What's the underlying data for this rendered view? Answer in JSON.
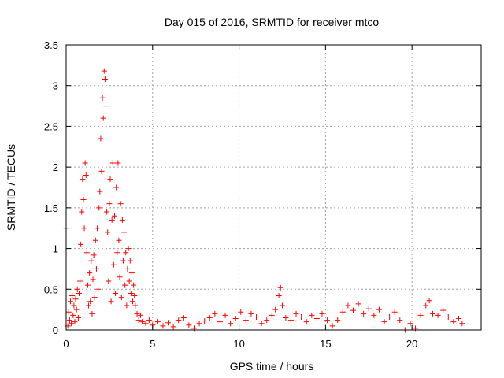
{
  "chart_data": {
    "type": "scatter",
    "title": "Day 015 of 2016, SRMTID for receiver mtco",
    "xlabel": "GPS time / hours",
    "ylabel": "SRMTID / TECUs",
    "xlim": [
      0,
      24
    ],
    "ylim": [
      0,
      3.5
    ],
    "x_ticks": [
      0,
      5,
      10,
      15,
      20
    ],
    "x_tick_labels": [
      "0",
      "5",
      "10",
      "15",
      "20"
    ],
    "y_ticks": [
      0,
      0.5,
      1,
      1.5,
      2,
      2.5,
      3,
      3.5
    ],
    "y_tick_labels": [
      "0",
      "0.5",
      "1",
      "1.5",
      "2",
      "2.5",
      "3",
      "3.5"
    ],
    "grid": true,
    "marker": "+",
    "marker_color": "#ff0000",
    "series": [
      {
        "name": "SRMTID",
        "points": [
          [
            0.0,
            1.25
          ],
          [
            0.1,
            0.05
          ],
          [
            0.15,
            0.22
          ],
          [
            0.2,
            0.12
          ],
          [
            0.25,
            0.35
          ],
          [
            0.3,
            0.08
          ],
          [
            0.35,
            0.42
          ],
          [
            0.4,
            0.18
          ],
          [
            0.45,
            0.3
          ],
          [
            0.5,
            0.1
          ],
          [
            0.55,
            0.38
          ],
          [
            0.6,
            0.25
          ],
          [
            0.65,
            0.5
          ],
          [
            0.7,
            0.15
          ],
          [
            0.75,
            0.45
          ],
          [
            0.8,
            0.6
          ],
          [
            0.85,
            1.05
          ],
          [
            0.9,
            1.45
          ],
          [
            0.95,
            1.85
          ],
          [
            1.0,
            1.6
          ],
          [
            1.05,
            1.25
          ],
          [
            1.1,
            2.05
          ],
          [
            1.15,
            1.9
          ],
          [
            1.2,
            0.95
          ],
          [
            1.25,
            0.55
          ],
          [
            1.3,
            0.3
          ],
          [
            1.35,
            0.7
          ],
          [
            1.4,
            0.35
          ],
          [
            1.45,
            0.85
          ],
          [
            1.5,
            0.2
          ],
          [
            1.55,
            0.62
          ],
          [
            1.6,
            0.92
          ],
          [
            1.65,
            0.4
          ],
          [
            1.7,
            1.1
          ],
          [
            1.75,
            0.75
          ],
          [
            1.8,
            1.25
          ],
          [
            1.85,
            0.5
          ],
          [
            1.9,
            1.5
          ],
          [
            1.95,
            1.7
          ],
          [
            2.0,
            2.35
          ],
          [
            2.05,
            1.95
          ],
          [
            2.1,
            2.85
          ],
          [
            2.15,
            2.6
          ],
          [
            2.2,
            3.18
          ],
          [
            2.25,
            3.08
          ],
          [
            2.3,
            2.75
          ],
          [
            2.35,
            1.45
          ],
          [
            2.4,
            1.2
          ],
          [
            2.45,
            0.6
          ],
          [
            2.5,
            1.55
          ],
          [
            2.55,
            1.85
          ],
          [
            2.6,
            0.35
          ],
          [
            2.65,
            1.35
          ],
          [
            2.7,
            2.05
          ],
          [
            2.75,
            0.8
          ],
          [
            2.8,
            1.4
          ],
          [
            2.85,
            0.45
          ],
          [
            2.9,
            1.75
          ],
          [
            2.95,
            0.95
          ],
          [
            3.0,
            2.05
          ],
          [
            3.05,
            1.1
          ],
          [
            3.1,
            0.65
          ],
          [
            3.15,
            1.55
          ],
          [
            3.2,
            0.4
          ],
          [
            3.25,
            1.35
          ],
          [
            3.3,
            0.85
          ],
          [
            3.35,
            1.2
          ],
          [
            3.4,
            0.55
          ],
          [
            3.45,
            0.95
          ],
          [
            3.5,
            0.3
          ],
          [
            3.55,
            0.75
          ],
          [
            3.6,
            1.0
          ],
          [
            3.65,
            0.6
          ],
          [
            3.7,
            0.85
          ],
          [
            3.75,
            0.45
          ],
          [
            3.8,
            0.7
          ],
          [
            3.85,
            0.35
          ],
          [
            3.9,
            0.55
          ],
          [
            3.95,
            0.42
          ],
          [
            4.0,
            0.3
          ],
          [
            4.1,
            0.2
          ],
          [
            4.2,
            0.12
          ],
          [
            4.3,
            0.18
          ],
          [
            4.4,
            0.1
          ],
          [
            4.6,
            0.08
          ],
          [
            4.8,
            0.12
          ],
          [
            5.0,
            0.06
          ],
          [
            5.3,
            0.1
          ],
          [
            5.6,
            0.05
          ],
          [
            5.9,
            0.09
          ],
          [
            6.2,
            0.04
          ],
          [
            6.5,
            0.12
          ],
          [
            6.8,
            0.15
          ],
          [
            7.1,
            0.06
          ],
          [
            7.4,
            0.02
          ],
          [
            7.7,
            0.08
          ],
          [
            8.0,
            0.11
          ],
          [
            8.3,
            0.15
          ],
          [
            8.6,
            0.2
          ],
          [
            8.9,
            0.1
          ],
          [
            9.2,
            0.18
          ],
          [
            9.5,
            0.08
          ],
          [
            9.8,
            0.14
          ],
          [
            10.1,
            0.22
          ],
          [
            10.4,
            0.12
          ],
          [
            10.7,
            0.2
          ],
          [
            11.0,
            0.16
          ],
          [
            11.3,
            0.08
          ],
          [
            11.6,
            0.12
          ],
          [
            11.9,
            0.18
          ],
          [
            12.1,
            0.25
          ],
          [
            12.3,
            0.42
          ],
          [
            12.4,
            0.52
          ],
          [
            12.5,
            0.3
          ],
          [
            12.7,
            0.15
          ],
          [
            13.0,
            0.12
          ],
          [
            13.3,
            0.2
          ],
          [
            13.6,
            0.16
          ],
          [
            13.9,
            0.1
          ],
          [
            14.2,
            0.18
          ],
          [
            14.5,
            0.14
          ],
          [
            14.8,
            0.2
          ],
          [
            15.1,
            0.12
          ],
          [
            15.4,
            0.05
          ],
          [
            15.7,
            0.12
          ],
          [
            16.0,
            0.22
          ],
          [
            16.3,
            0.3
          ],
          [
            16.6,
            0.24
          ],
          [
            16.9,
            0.32
          ],
          [
            17.2,
            0.2
          ],
          [
            17.5,
            0.26
          ],
          [
            17.8,
            0.18
          ],
          [
            18.1,
            0.25
          ],
          [
            18.4,
            0.1
          ],
          [
            18.7,
            0.16
          ],
          [
            19.0,
            0.22
          ],
          [
            19.3,
            0.12
          ],
          [
            19.6,
            0.0
          ],
          [
            19.9,
            0.08
          ],
          [
            20.2,
            0.02
          ],
          [
            20.5,
            0.18
          ],
          [
            20.8,
            0.3
          ],
          [
            21.0,
            0.36
          ],
          [
            21.2,
            0.2
          ],
          [
            21.5,
            0.18
          ],
          [
            21.8,
            0.24
          ],
          [
            22.1,
            0.16
          ],
          [
            22.4,
            0.1
          ],
          [
            22.7,
            0.14
          ],
          [
            22.9,
            0.08
          ]
        ]
      }
    ]
  }
}
